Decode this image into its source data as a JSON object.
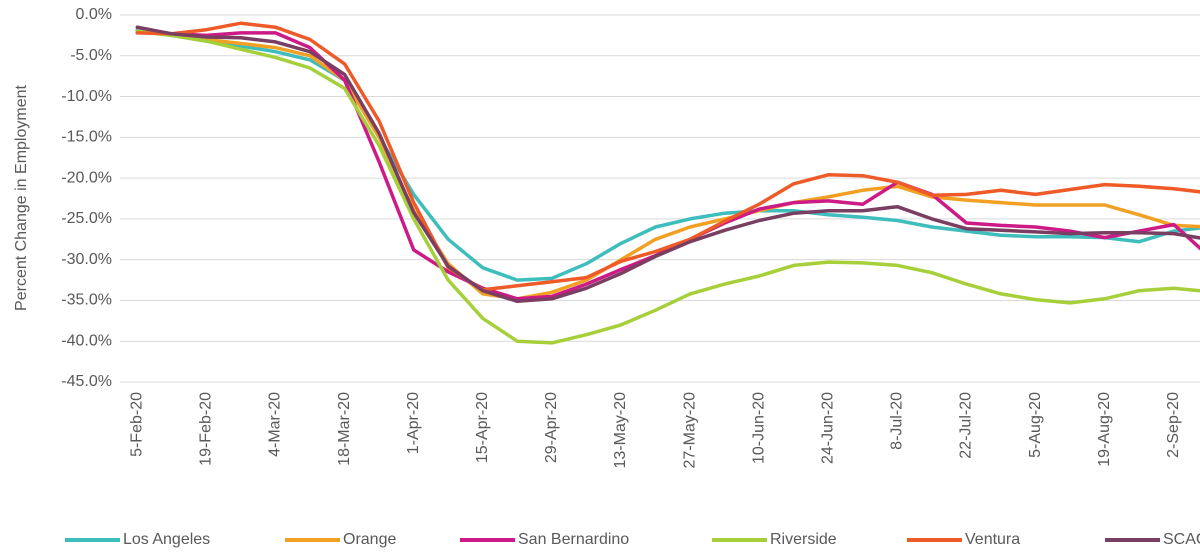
{
  "chart_data": {
    "type": "line",
    "y_label": "Percent Change in Employment",
    "categories": [
      "5-Feb-20",
      null,
      "19-Feb-20",
      null,
      "4-Mar-20",
      null,
      "18-Mar-20",
      null,
      "1-Apr-20",
      null,
      "15-Apr-20",
      null,
      "29-Apr-20",
      null,
      "13-May-20",
      null,
      "27-May-20",
      null,
      "10-Jun-20",
      null,
      "24-Jun-20",
      null,
      "8-Jul-20",
      null,
      "22-Jul-20",
      null,
      "5-Aug-20",
      null,
      "19-Aug-20",
      null,
      "2-Sep-20",
      null
    ],
    "series": [
      {
        "name": "Los Angeles",
        "color": "#3ebdbd",
        "values": [
          -1.8,
          -2.5,
          -3.2,
          -3.8,
          -4.5,
          -5.5,
          -8,
          -15,
          -22,
          -27.5,
          -31,
          -32.5,
          -32.3,
          -30.5,
          -28,
          -26,
          -25,
          -24.3,
          -24,
          -24,
          -24.5,
          -24.8,
          -25.2,
          -26,
          -26.5,
          -27,
          -27.2,
          -27.2,
          -27.3,
          -27.8,
          -26.5,
          -26
        ]
      },
      {
        "name": "Orange",
        "color": "#f2a024",
        "values": [
          -2,
          -2.5,
          -3,
          -3.5,
          -4,
          -5,
          -8,
          -15,
          -24,
          -30.5,
          -34.2,
          -34.8,
          -34,
          -32.5,
          -30,
          -27.5,
          -26,
          -25,
          -24,
          -23,
          -22.3,
          -21.5,
          -21,
          -22.3,
          -22.7,
          -23,
          -23.3,
          -23.3,
          -23.3,
          -24.5,
          -25.8,
          -26
        ]
      },
      {
        "name": "San Bernardino",
        "color": "#cc1a86",
        "values": [
          -2,
          -2.3,
          -2.5,
          -2.2,
          -2.2,
          -4,
          -8,
          -18,
          -28.8,
          -31.5,
          -33.5,
          -34.8,
          -34.5,
          -33,
          -31.2,
          -29.5,
          -27.5,
          -25.5,
          -23.8,
          -23,
          -22.8,
          -23.2,
          -20.5,
          -22,
          -25.5,
          -25.8,
          -26,
          -26.5,
          -27.3,
          -26.5,
          -25.7,
          -29.5
        ]
      },
      {
        "name": "Riverside",
        "color": "#a6cf3a",
        "values": [
          -2,
          -2.5,
          -3.2,
          -4.2,
          -5.2,
          -6.5,
          -9,
          -16,
          -25,
          -32.5,
          -37.2,
          -40,
          -40.2,
          -39.2,
          -38,
          -36.2,
          -34.2,
          -33,
          -32,
          -30.7,
          -30.3,
          -30.4,
          -30.7,
          -31.6,
          -33,
          -34.2,
          -34.9,
          -35.3,
          -34.8,
          -33.8,
          -33.5,
          -33.9
        ]
      },
      {
        "name": "Ventura",
        "color": "#ee5a28",
        "values": [
          -2.2,
          -2.3,
          -1.8,
          -1,
          -1.5,
          -3,
          -6,
          -13,
          -23,
          -31,
          -33.7,
          -33.2,
          -32.7,
          -32.2,
          -30.2,
          -29,
          -27.5,
          -25.3,
          -23.2,
          -20.7,
          -19.6,
          -19.7,
          -20.5,
          -22.1,
          -22,
          -21.5,
          -22,
          -21.4,
          -20.8,
          -21,
          -21.3,
          -21.8
        ]
      },
      {
        "name": "SCAG",
        "color": "#7a3e63",
        "values": [
          -1.5,
          -2.3,
          -2.7,
          -2.8,
          -3.3,
          -4.5,
          -7.3,
          -14.5,
          -24.2,
          -30.8,
          -33.8,
          -35.1,
          -34.8,
          -33.5,
          -31.7,
          -29.6,
          -27.8,
          -26.4,
          -25.2,
          -24.3,
          -24,
          -24,
          -23.5,
          -25,
          -26.2,
          -26.4,
          -26.6,
          -26.8,
          -26.7,
          -26.7,
          -26.8,
          -27.5
        ]
      }
    ],
    "ylim": [
      -45,
      0
    ],
    "yticks": [
      {
        "value": 0,
        "label": "0.0%"
      },
      {
        "value": -5,
        "label": "-5.0%"
      },
      {
        "value": -10,
        "label": "-10.0%"
      },
      {
        "value": -15,
        "label": "-15.0%"
      },
      {
        "value": -20,
        "label": "-20.0%"
      },
      {
        "value": -25,
        "label": "-25.0%"
      },
      {
        "value": -30,
        "label": "-30.0%"
      },
      {
        "value": -35,
        "label": "-35.0%"
      },
      {
        "value": -40,
        "label": "-40.0%"
      },
      {
        "value": -45,
        "label": "-45.0%"
      }
    ],
    "grid": true,
    "legend": "bottom"
  }
}
